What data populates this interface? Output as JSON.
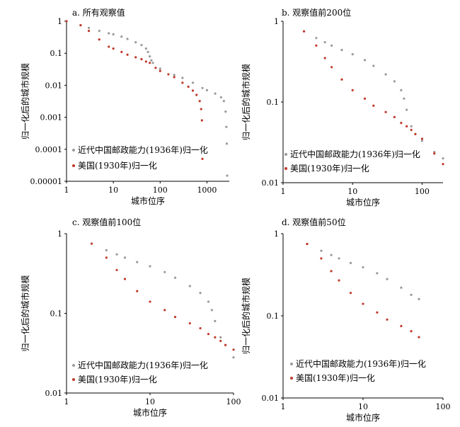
{
  "figure": {
    "colors": {
      "gray_series": "#9a9a9a",
      "red_series": "#c0392b",
      "axis": "#000000"
    }
  },
  "chart_data": [
    {
      "type": "scatter",
      "panel": "a",
      "title": "a. 所有观察值",
      "xlabel": "城市位序",
      "ylabel": "归一化后的城市规模",
      "xscale": "log",
      "yscale": "log",
      "xlim": [
        1,
        3000
      ],
      "ylim": [
        1e-05,
        1
      ],
      "xticks": [
        "1",
        "10",
        "100",
        "1000"
      ],
      "yticks": [
        "1",
        "0.1",
        "0.01",
        "0.001",
        "0.0001",
        "0.00001"
      ],
      "legend_position": "bottom-left",
      "series": [
        {
          "name": "近代中国邮政能力(1936年)归一化",
          "color": "#9a9a9a",
          "points": [
            [
              1,
              1
            ],
            [
              2,
              0.75
            ],
            [
              3,
              0.62
            ],
            [
              5,
              0.5
            ],
            [
              8,
              0.42
            ],
            [
              10,
              0.39
            ],
            [
              15,
              0.33
            ],
            [
              20,
              0.28
            ],
            [
              30,
              0.22
            ],
            [
              40,
              0.18
            ],
            [
              50,
              0.14
            ],
            [
              55,
              0.11
            ],
            [
              60,
              0.08
            ],
            [
              65,
              0.06
            ],
            [
              70,
              0.05
            ],
            [
              100,
              0.033
            ],
            [
              200,
              0.021
            ],
            [
              300,
              0.017
            ],
            [
              500,
              0.012
            ],
            [
              800,
              0.0082
            ],
            [
              1000,
              0.007
            ],
            [
              1500,
              0.0055
            ],
            [
              2000,
              0.0042
            ],
            [
              2300,
              0.0032
            ],
            [
              2500,
              0.0015
            ],
            [
              2600,
              0.0005
            ],
            [
              2650,
              0.00015
            ],
            [
              2700,
              1.5e-05
            ]
          ]
        },
        {
          "name": "美国(1930年)归一化",
          "color": "#c0392b",
          "points": [
            [
              1,
              1
            ],
            [
              2,
              0.75
            ],
            [
              3,
              0.5
            ],
            [
              5,
              0.27
            ],
            [
              8,
              0.16
            ],
            [
              10,
              0.14
            ],
            [
              15,
              0.11
            ],
            [
              20,
              0.09
            ],
            [
              30,
              0.075
            ],
            [
              40,
              0.065
            ],
            [
              50,
              0.055
            ],
            [
              60,
              0.05
            ],
            [
              80,
              0.035
            ],
            [
              100,
              0.028
            ],
            [
              150,
              0.022
            ],
            [
              200,
              0.018
            ],
            [
              300,
              0.012
            ],
            [
              400,
              0.009
            ],
            [
              500,
              0.0068
            ],
            [
              600,
              0.005
            ],
            [
              700,
              0.0032
            ],
            [
              750,
              0.0018
            ],
            [
              780,
              0.0008
            ],
            [
              800,
              5e-05
            ]
          ]
        }
      ]
    },
    {
      "type": "scatter",
      "panel": "b",
      "title": "b. 观察值前200位",
      "xlabel": "城市位序",
      "ylabel": "归一化后的城市规模",
      "xscale": "log",
      "yscale": "log",
      "xlim": [
        1,
        200
      ],
      "ylim": [
        0.01,
        1
      ],
      "xticks": [
        "1",
        "10",
        "100"
      ],
      "yticks": [
        "1",
        "0.1",
        "0.01"
      ],
      "legend_position": "bottom-left",
      "series": [
        {
          "name": "近代中国邮政能力(1936年)归一化",
          "color": "#9a9a9a",
          "points": [
            [
              2,
              0.75
            ],
            [
              3,
              0.62
            ],
            [
              4,
              0.55
            ],
            [
              5,
              0.5
            ],
            [
              7,
              0.44
            ],
            [
              10,
              0.39
            ],
            [
              15,
              0.33
            ],
            [
              20,
              0.28
            ],
            [
              30,
              0.22
            ],
            [
              40,
              0.18
            ],
            [
              50,
              0.14
            ],
            [
              55,
              0.11
            ],
            [
              60,
              0.08
            ],
            [
              70,
              0.05
            ],
            [
              80,
              0.04
            ],
            [
              100,
              0.033
            ],
            [
              150,
              0.024
            ],
            [
              200,
              0.02
            ]
          ]
        },
        {
          "name": "美国(1930年)归一化",
          "color": "#c0392b",
          "points": [
            [
              2,
              0.75
            ],
            [
              3,
              0.5
            ],
            [
              4,
              0.35
            ],
            [
              5,
              0.27
            ],
            [
              7,
              0.19
            ],
            [
              10,
              0.14
            ],
            [
              15,
              0.11
            ],
            [
              20,
              0.09
            ],
            [
              30,
              0.075
            ],
            [
              40,
              0.065
            ],
            [
              50,
              0.055
            ],
            [
              60,
              0.05
            ],
            [
              70,
              0.045
            ],
            [
              80,
              0.04
            ],
            [
              100,
              0.035
            ],
            [
              150,
              0.023
            ],
            [
              200,
              0.017
            ]
          ]
        }
      ]
    },
    {
      "type": "scatter",
      "panel": "c",
      "title": "c. 观察值前100位",
      "xlabel": "城市位序",
      "ylabel": "归一化后的城市规模",
      "xscale": "log",
      "yscale": "log",
      "xlim": [
        1,
        100
      ],
      "ylim": [
        0.01,
        1
      ],
      "xticks": [
        "1",
        "10",
        "100"
      ],
      "yticks": [
        "1",
        "0.1",
        "0.01"
      ],
      "legend_position": "bottom-left",
      "series": [
        {
          "name": "近代中国邮政能力(1936年)归一化",
          "color": "#9a9a9a",
          "points": [
            [
              2,
              0.75
            ],
            [
              3,
              0.62
            ],
            [
              4,
              0.55
            ],
            [
              5,
              0.5
            ],
            [
              7,
              0.44
            ],
            [
              10,
              0.39
            ],
            [
              15,
              0.33
            ],
            [
              20,
              0.28
            ],
            [
              30,
              0.22
            ],
            [
              40,
              0.18
            ],
            [
              50,
              0.14
            ],
            [
              55,
              0.11
            ],
            [
              60,
              0.08
            ],
            [
              70,
              0.05
            ],
            [
              80,
              0.04
            ],
            [
              100,
              0.028
            ]
          ]
        },
        {
          "name": "美国(1930年)归一化",
          "color": "#c0392b",
          "points": [
            [
              2,
              0.75
            ],
            [
              3,
              0.5
            ],
            [
              4,
              0.35
            ],
            [
              5,
              0.27
            ],
            [
              7,
              0.19
            ],
            [
              10,
              0.14
            ],
            [
              15,
              0.11
            ],
            [
              20,
              0.09
            ],
            [
              30,
              0.075
            ],
            [
              40,
              0.065
            ],
            [
              50,
              0.055
            ],
            [
              60,
              0.05
            ],
            [
              70,
              0.045
            ],
            [
              80,
              0.04
            ],
            [
              100,
              0.035
            ]
          ]
        }
      ]
    },
    {
      "type": "scatter",
      "panel": "d",
      "title": "d. 观察值前50位",
      "xlabel": "城市位序",
      "ylabel": "归一化后的城市规模",
      "xscale": "log",
      "yscale": "log",
      "xlim": [
        1,
        100
      ],
      "ylim": [
        0.01,
        1
      ],
      "xticks": [
        "1",
        "10",
        "100"
      ],
      "yticks": [
        "1",
        "0.1",
        "0.01"
      ],
      "legend_position": "bottom-left",
      "series": [
        {
          "name": "近代中国邮政能力(1936年)归一化",
          "color": "#9a9a9a",
          "points": [
            [
              2,
              0.75
            ],
            [
              3,
              0.62
            ],
            [
              4,
              0.55
            ],
            [
              5,
              0.5
            ],
            [
              7,
              0.44
            ],
            [
              10,
              0.39
            ],
            [
              15,
              0.33
            ],
            [
              20,
              0.28
            ],
            [
              30,
              0.22
            ],
            [
              40,
              0.18
            ],
            [
              50,
              0.16
            ]
          ]
        },
        {
          "name": "美国(1930年)归一化",
          "color": "#c0392b",
          "points": [
            [
              2,
              0.75
            ],
            [
              3,
              0.5
            ],
            [
              4,
              0.35
            ],
            [
              5,
              0.27
            ],
            [
              7,
              0.19
            ],
            [
              10,
              0.14
            ],
            [
              15,
              0.11
            ],
            [
              20,
              0.09
            ],
            [
              30,
              0.075
            ],
            [
              40,
              0.065
            ],
            [
              50,
              0.055
            ]
          ]
        }
      ]
    }
  ]
}
